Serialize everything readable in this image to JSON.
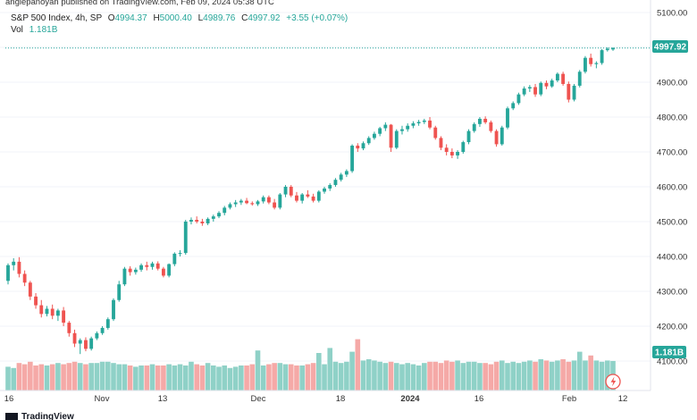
{
  "header": {
    "published": "angiepanoyan published on TradingView.com, Feb 09, 2024 05:38 UTC",
    "symbol": "S&P 500 Index, 4h, SP",
    "o_label": "O",
    "o_value": "4994.37",
    "h_label": "H",
    "h_value": "5000.40",
    "l_label": "L",
    "l_value": "4989.76",
    "c_label": "C",
    "c_value": "4997.92",
    "change": "+3.55 (+0.07%)",
    "vol_label": "Vol",
    "vol_value": "1.181B"
  },
  "footer": {
    "brand": "TradingView"
  },
  "colors": {
    "up": "#26a69a",
    "down": "#ef5350",
    "vol_up": "#8fd1c7",
    "vol_down": "#f5a9a7",
    "price_badge": "#26a69a",
    "axis_text": "#333333",
    "pill": "#ef5350"
  },
  "chart_data": {
    "type": "candlestick",
    "price_axis": {
      "ticks": [
        5100,
        5000,
        4900,
        4800,
        4700,
        4600,
        4500,
        4400,
        4300,
        4200,
        4100
      ],
      "tick_labels": [
        "5100.00",
        "5000.00",
        "4900.00",
        "4800.00",
        "4700.00",
        "4600.00",
        "4500.00",
        "4400.00",
        "4300.00",
        "4200.00",
        "4100.00"
      ],
      "range": [
        4070,
        5110
      ]
    },
    "last_price": "4997.92",
    "last_volume": "1.181B",
    "x_labels": [
      "16",
      "Nov",
      "13",
      "Dec",
      "18",
      "2024",
      "16",
      "Feb",
      "12"
    ],
    "candles": [
      [
        4330,
        4380,
        4320,
        4375
      ],
      [
        4375,
        4395,
        4360,
        4385
      ],
      [
        4385,
        4398,
        4340,
        4350
      ],
      [
        4350,
        4360,
        4315,
        4325
      ],
      [
        4325,
        4330,
        4275,
        4285
      ],
      [
        4285,
        4295,
        4250,
        4260
      ],
      [
        4260,
        4275,
        4225,
        4235
      ],
      [
        4235,
        4258,
        4228,
        4250
      ],
      [
        4250,
        4262,
        4220,
        4230
      ],
      [
        4230,
        4250,
        4215,
        4245
      ],
      [
        4245,
        4255,
        4200,
        4210
      ],
      [
        4210,
        4215,
        4170,
        4180
      ],
      [
        4180,
        4190,
        4140,
        4150
      ],
      [
        4150,
        4165,
        4120,
        4160
      ],
      [
        4160,
        4168,
        4128,
        4135
      ],
      [
        4135,
        4170,
        4130,
        4165
      ],
      [
        4165,
        4185,
        4160,
        4180
      ],
      [
        4180,
        4200,
        4175,
        4195
      ],
      [
        4195,
        4225,
        4190,
        4220
      ],
      [
        4220,
        4280,
        4215,
        4275
      ],
      [
        4275,
        4330,
        4270,
        4320
      ],
      [
        4320,
        4370,
        4315,
        4365
      ],
      [
        4365,
        4372,
        4345,
        4355
      ],
      [
        4355,
        4368,
        4348,
        4362
      ],
      [
        4362,
        4380,
        4356,
        4375
      ],
      [
        4375,
        4385,
        4360,
        4370
      ],
      [
        4370,
        4385,
        4362,
        4380
      ],
      [
        4380,
        4386,
        4360,
        4365
      ],
      [
        4365,
        4370,
        4340,
        4345
      ],
      [
        4345,
        4380,
        4340,
        4378
      ],
      [
        4378,
        4412,
        4372,
        4408
      ],
      [
        4408,
        4418,
        4400,
        4410
      ],
      [
        4410,
        4505,
        4405,
        4500
      ],
      [
        4500,
        4512,
        4492,
        4505
      ],
      [
        4505,
        4515,
        4495,
        4500
      ],
      [
        4500,
        4508,
        4488,
        4495
      ],
      [
        4495,
        4512,
        4490,
        4508
      ],
      [
        4508,
        4520,
        4500,
        4515
      ],
      [
        4515,
        4530,
        4510,
        4525
      ],
      [
        4525,
        4545,
        4518,
        4540
      ],
      [
        4540,
        4555,
        4535,
        4550
      ],
      [
        4550,
        4562,
        4542,
        4555
      ],
      [
        4555,
        4565,
        4548,
        4560
      ],
      [
        4560,
        4568,
        4550,
        4553
      ],
      [
        4553,
        4558,
        4546,
        4550
      ],
      [
        4550,
        4562,
        4545,
        4558
      ],
      [
        4558,
        4575,
        4552,
        4570
      ],
      [
        4570,
        4575,
        4550,
        4555
      ],
      [
        4555,
        4565,
        4535,
        4540
      ],
      [
        4540,
        4582,
        4535,
        4578
      ],
      [
        4578,
        4605,
        4570,
        4600
      ],
      [
        4600,
        4605,
        4570,
        4575
      ],
      [
        4575,
        4585,
        4555,
        4560
      ],
      [
        4560,
        4582,
        4552,
        4578
      ],
      [
        4578,
        4590,
        4568,
        4572
      ],
      [
        4572,
        4580,
        4555,
        4560
      ],
      [
        4560,
        4590,
        4555,
        4586
      ],
      [
        4586,
        4600,
        4580,
        4595
      ],
      [
        4595,
        4610,
        4588,
        4605
      ],
      [
        4605,
        4625,
        4600,
        4620
      ],
      [
        4620,
        4640,
        4615,
        4635
      ],
      [
        4635,
        4650,
        4628,
        4645
      ],
      [
        4645,
        4722,
        4640,
        4718
      ],
      [
        4718,
        4725,
        4700,
        4710
      ],
      [
        4710,
        4730,
        4705,
        4725
      ],
      [
        4725,
        4745,
        4720,
        4740
      ],
      [
        4740,
        4758,
        4735,
        4752
      ],
      [
        4752,
        4772,
        4745,
        4768
      ],
      [
        4768,
        4785,
        4760,
        4778
      ],
      [
        4778,
        4780,
        4700,
        4712
      ],
      [
        4712,
        4765,
        4708,
        4760
      ],
      [
        4760,
        4775,
        4750,
        4765
      ],
      [
        4765,
        4782,
        4758,
        4775
      ],
      [
        4775,
        4788,
        4768,
        4782
      ],
      [
        4782,
        4792,
        4775,
        4786
      ],
      [
        4786,
        4795,
        4780,
        4790
      ],
      [
        4790,
        4800,
        4765,
        4770
      ],
      [
        4770,
        4775,
        4735,
        4740
      ],
      [
        4740,
        4745,
        4705,
        4712
      ],
      [
        4712,
        4722,
        4690,
        4700
      ],
      [
        4700,
        4710,
        4682,
        4690
      ],
      [
        4690,
        4705,
        4680,
        4700
      ],
      [
        4700,
        4732,
        4695,
        4728
      ],
      [
        4728,
        4765,
        4722,
        4760
      ],
      [
        4760,
        4785,
        4755,
        4780
      ],
      [
        4780,
        4800,
        4772,
        4795
      ],
      [
        4795,
        4802,
        4780,
        4785
      ],
      [
        4785,
        4790,
        4755,
        4760
      ],
      [
        4760,
        4765,
        4715,
        4722
      ],
      [
        4722,
        4775,
        4718,
        4770
      ],
      [
        4770,
        4830,
        4765,
        4825
      ],
      [
        4825,
        4845,
        4820,
        4840
      ],
      [
        4840,
        4870,
        4835,
        4865
      ],
      [
        4865,
        4888,
        4860,
        4882
      ],
      [
        4882,
        4892,
        4872,
        4886
      ],
      [
        4886,
        4895,
        4858,
        4865
      ],
      [
        4865,
        4902,
        4860,
        4898
      ],
      [
        4898,
        4905,
        4880,
        4888
      ],
      [
        4888,
        4910,
        4884,
        4905
      ],
      [
        4905,
        4928,
        4900,
        4924
      ],
      [
        4924,
        4930,
        4890,
        4895
      ],
      [
        4895,
        4902,
        4842,
        4850
      ],
      [
        4850,
        4895,
        4845,
        4890
      ],
      [
        4890,
        4935,
        4885,
        4930
      ],
      [
        4930,
        4975,
        4925,
        4970
      ],
      [
        4970,
        4982,
        4945,
        4952
      ],
      [
        4952,
        4960,
        4940,
        4955
      ],
      [
        4955,
        4995,
        4950,
        4992
      ],
      [
        4992,
        5000,
        4988,
        4996
      ],
      [
        4994,
        5000,
        4990,
        4998
      ]
    ],
    "volumes": [
      0.95,
      0.9,
      1.1,
      1.05,
      1.15,
      1.0,
      1.05,
      1.0,
      1.05,
      1.1,
      1.05,
      1.1,
      1.15,
      1.1,
      1.05,
      1.1,
      1.1,
      1.15,
      1.15,
      1.1,
      1.05,
      1.05,
      1.0,
      0.95,
      1.0,
      1.0,
      1.05,
      1.0,
      1.0,
      1.05,
      1.0,
      1.05,
      1.0,
      1.15,
      1.05,
      1.0,
      1.1,
      1.0,
      0.95,
      1.0,
      0.9,
      0.95,
      1.0,
      1.0,
      1.05,
      1.0,
      1.0,
      1.05,
      1.1,
      1.1,
      1.05,
      1.05,
      1.0,
      1.0,
      1.05,
      1.1,
      1.1,
      1.05,
      1.1,
      1.15,
      1.1,
      1.15,
      1.2,
      1.25,
      1.2,
      1.25,
      1.2,
      1.15,
      1.1,
      1.15,
      1.1,
      1.05,
      1.1,
      1.05,
      1.0,
      1.1,
      1.15,
      1.15,
      1.1,
      1.2,
      1.15,
      1.2,
      1.1,
      1.15,
      1.15,
      1.1,
      1.1,
      1.05,
      1.15,
      1.2,
      1.1,
      1.15,
      1.1,
      1.15,
      1.2,
      1.15,
      1.25,
      1.2,
      1.15,
      1.2,
      1.25,
      1.15,
      1.2,
      1.25,
      1.2,
      1.15,
      1.2,
      1.15,
      1.2,
      1.181
    ],
    "volume_spikes": [
      [
        45,
        1.6
      ],
      [
        56,
        1.5
      ],
      [
        58,
        1.7
      ],
      [
        62,
        1.55
      ],
      [
        63,
        2.05
      ],
      [
        103,
        1.55
      ],
      [
        105,
        1.4
      ]
    ]
  }
}
